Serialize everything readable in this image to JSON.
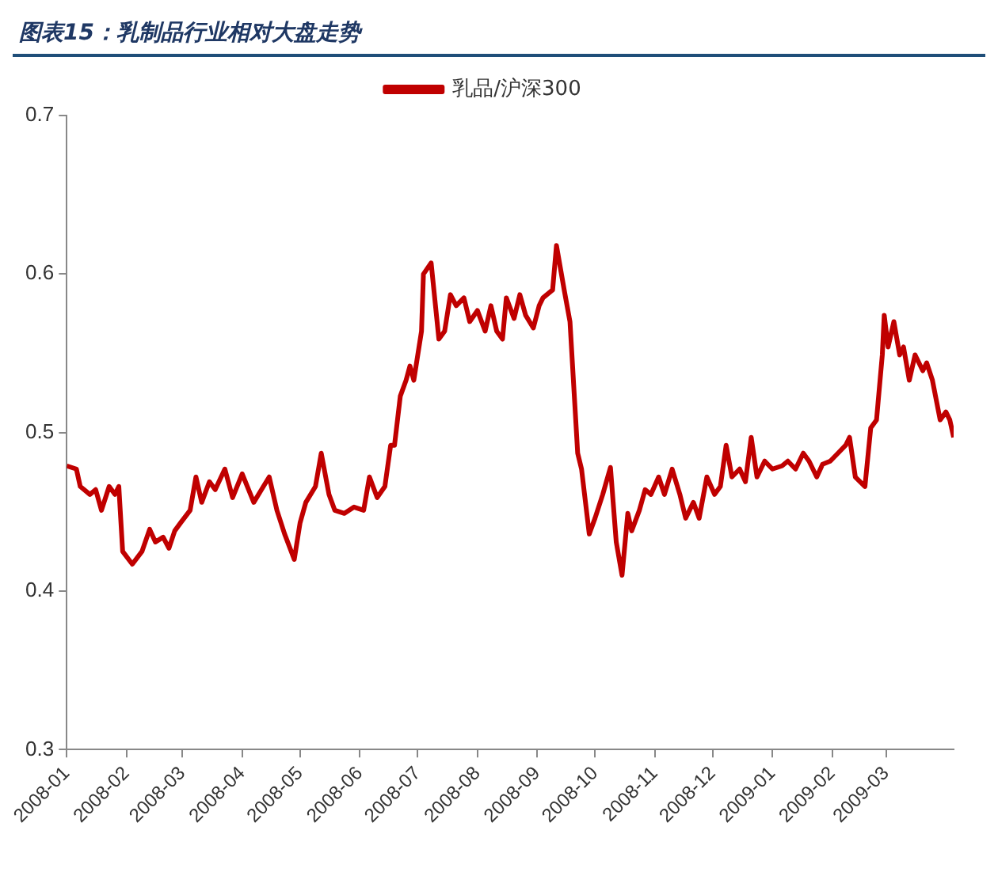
{
  "chart_data": {
    "type": "line",
    "title": "图表15：乳制品行业相对大盘走势",
    "legend": "top",
    "xlim": [
      "2008-01-01",
      "2009-04-05"
    ],
    "xticks": [
      "2008-01",
      "2008-02",
      "2008-03",
      "2008-04",
      "2008-05",
      "2008-06",
      "2008-07",
      "2008-08",
      "2008-09",
      "2008-10",
      "2008-11",
      "2008-12",
      "2009-01",
      "2009-02",
      "2009-03"
    ],
    "ylim": [
      0.3,
      0.7
    ],
    "yticks": [
      0.3,
      0.4,
      0.5,
      0.6,
      0.7
    ],
    "grid": false,
    "series": [
      {
        "name": "乳品/沪深300",
        "color": "#c00000",
        "x": [
          "2008-01-01",
          "2008-01-06",
          "2008-01-08",
          "2008-01-13",
          "2008-01-16",
          "2008-01-19",
          "2008-01-23",
          "2008-01-26",
          "2008-01-28",
          "2008-01-30",
          "2008-02-04",
          "2008-02-09",
          "2008-02-13",
          "2008-02-16",
          "2008-02-20",
          "2008-02-23",
          "2008-02-26",
          "2008-02-29",
          "2008-03-05",
          "2008-03-08",
          "2008-03-11",
          "2008-03-15",
          "2008-03-18",
          "2008-03-23",
          "2008-03-27",
          "2008-04-01",
          "2008-04-07",
          "2008-04-11",
          "2008-04-15",
          "2008-04-19",
          "2008-04-23",
          "2008-04-28",
          "2008-05-01",
          "2008-05-04",
          "2008-05-09",
          "2008-05-12",
          "2008-05-16",
          "2008-05-19",
          "2008-05-24",
          "2008-05-29",
          "2008-06-03",
          "2008-06-06",
          "2008-06-10",
          "2008-06-14",
          "2008-06-17",
          "2008-06-19",
          "2008-06-22",
          "2008-06-25",
          "2008-06-27",
          "2008-06-29",
          "2008-07-03",
          "2008-07-04",
          "2008-07-08",
          "2008-07-12",
          "2008-07-15",
          "2008-07-18",
          "2008-07-21",
          "2008-07-25",
          "2008-07-28",
          "2008-08-01",
          "2008-08-05",
          "2008-08-08",
          "2008-08-11",
          "2008-08-14",
          "2008-08-16",
          "2008-08-20",
          "2008-08-23",
          "2008-08-26",
          "2008-08-30",
          "2008-09-02",
          "2008-09-04",
          "2008-09-09",
          "2008-09-11",
          "2008-09-15",
          "2008-09-18",
          "2008-09-22",
          "2008-09-24",
          "2008-09-28",
          "2008-10-01",
          "2008-10-05",
          "2008-10-09",
          "2008-10-12",
          "2008-10-15",
          "2008-10-18",
          "2008-10-20",
          "2008-10-24",
          "2008-10-27",
          "2008-10-30",
          "2008-11-03",
          "2008-11-06",
          "2008-11-10",
          "2008-11-14",
          "2008-11-17",
          "2008-11-21",
          "2008-11-24",
          "2008-11-28",
          "2008-12-02",
          "2008-12-05",
          "2008-12-08",
          "2008-12-11",
          "2008-12-15",
          "2008-12-18",
          "2008-12-21",
          "2008-12-24",
          "2008-12-28",
          "2009-01-01",
          "2009-01-06",
          "2009-01-09",
          "2009-01-13",
          "2009-01-17",
          "2009-01-20",
          "2009-01-24",
          "2009-01-27",
          "2009-01-31",
          "2009-02-04",
          "2009-02-08",
          "2009-02-10",
          "2009-02-13",
          "2009-02-18",
          "2009-02-21",
          "2009-02-24",
          "2009-02-27",
          "2009-02-28",
          "2009-03-02",
          "2009-03-05",
          "2009-03-08",
          "2009-03-10",
          "2009-03-13",
          "2009-03-16",
          "2009-03-20",
          "2009-03-22",
          "2009-03-25",
          "2009-03-29",
          "2009-04-01",
          "2009-04-03",
          "2009-04-05"
        ],
        "values": [
          0.479,
          0.477,
          0.466,
          0.461,
          0.464,
          0.451,
          0.466,
          0.461,
          0.466,
          0.425,
          0.417,
          0.425,
          0.439,
          0.431,
          0.434,
          0.427,
          0.438,
          0.443,
          0.451,
          0.472,
          0.456,
          0.469,
          0.464,
          0.477,
          0.459,
          0.474,
          0.456,
          0.464,
          0.472,
          0.451,
          0.436,
          0.42,
          0.443,
          0.456,
          0.466,
          0.487,
          0.461,
          0.451,
          0.449,
          0.453,
          0.451,
          0.472,
          0.459,
          0.466,
          0.492,
          0.492,
          0.523,
          0.533,
          0.542,
          0.533,
          0.564,
          0.6,
          0.607,
          0.559,
          0.564,
          0.587,
          0.58,
          0.585,
          0.57,
          0.577,
          0.564,
          0.58,
          0.564,
          0.559,
          0.585,
          0.572,
          0.587,
          0.574,
          0.566,
          0.58,
          0.585,
          0.59,
          0.618,
          0.59,
          0.57,
          0.487,
          0.477,
          0.436,
          0.446,
          0.461,
          0.478,
          0.431,
          0.41,
          0.449,
          0.438,
          0.451,
          0.464,
          0.461,
          0.472,
          0.461,
          0.477,
          0.461,
          0.446,
          0.456,
          0.446,
          0.472,
          0.461,
          0.466,
          0.492,
          0.472,
          0.477,
          0.469,
          0.497,
          0.472,
          0.482,
          0.477,
          0.479,
          0.482,
          0.477,
          0.487,
          0.482,
          0.472,
          0.48,
          0.482,
          0.487,
          0.492,
          0.497,
          0.472,
          0.466,
          0.503,
          0.508,
          0.549,
          0.574,
          0.554,
          0.57,
          0.549,
          0.554,
          0.533,
          0.549,
          0.539,
          0.544,
          0.533,
          0.508,
          0.513,
          0.508,
          0.497
        ]
      }
    ]
  }
}
